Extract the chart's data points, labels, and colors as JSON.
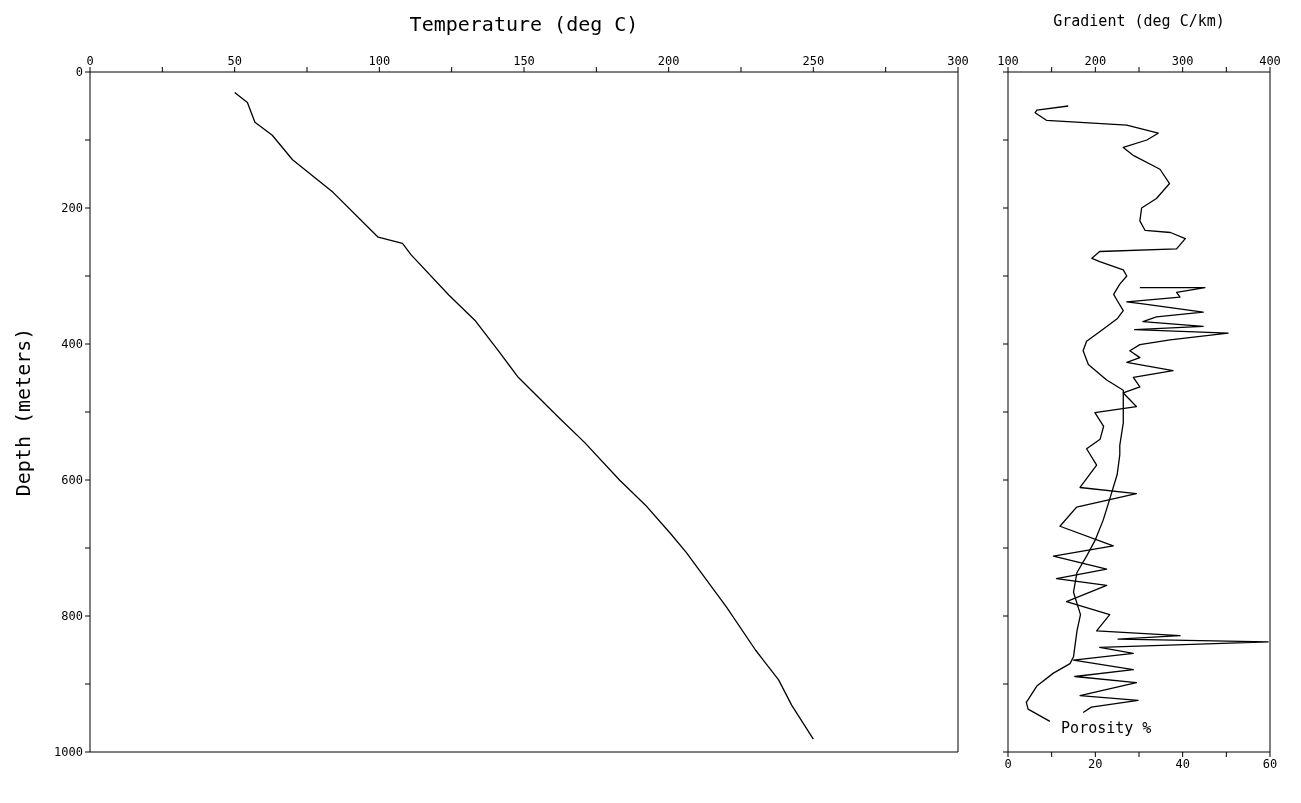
{
  "chart_data": [
    {
      "type": "line",
      "xlabel": "Temperature (deg C)",
      "ylabel": "Depth (meters)",
      "xlim": [
        0,
        300
      ],
      "xticks": [
        0,
        {
          "value": 25,
          "label": null
        },
        50,
        {
          "value": 75,
          "label": null
        },
        100,
        {
          "value": 125,
          "label": null
        },
        150,
        {
          "value": 175,
          "label": null
        },
        200,
        {
          "value": 225,
          "label": null
        },
        250,
        {
          "value": 275,
          "label": null
        },
        300
      ],
      "ylim": [
        1000,
        0
      ],
      "yticks": [
        0,
        {
          "value": 100,
          "label": null
        },
        200,
        {
          "value": 300,
          "label": null
        },
        400,
        {
          "value": 500,
          "label": null
        },
        600,
        {
          "value": 700,
          "label": null
        },
        800,
        {
          "value": 900,
          "label": null
        },
        1000
      ],
      "grid": false,
      "legend": false,
      "series": [
        {
          "color": "#000000",
          "x": [
            50,
            54.4,
            57,
            63,
            70,
            84,
            99.6,
            108,
            111,
            124,
            133,
            141.5,
            148,
            162,
            171,
            183,
            192,
            200.7,
            206,
            220,
            230,
            238,
            242.5,
            250
          ],
          "values": [
            30,
            45,
            74,
            93,
            129,
            177,
            243,
            252,
            269,
            328,
            365,
            412,
            449,
            508,
            545,
            600,
            637,
            679,
            706,
            787,
            850,
            894,
            931,
            981
          ]
        }
      ]
    },
    {
      "type": "line",
      "xlim": [
        0,
        60
      ],
      "xticks": [
        0,
        {
          "value": 10,
          "label": null
        },
        20,
        {
          "value": 30,
          "label": null
        },
        40,
        {
          "value": 50,
          "label": null
        },
        60
      ],
      "x2label": "Gradient (deg C/km)",
      "x2lim": [
        100,
        400
      ],
      "x2ticks": [
        100,
        {
          "value": 150,
          "label": null
        },
        200,
        {
          "value": 250,
          "label": null
        },
        300,
        {
          "value": 350,
          "label": null
        },
        400
      ],
      "ylim": [
        1000,
        0
      ],
      "yticks": [
        {
          "value": 0,
          "label": null
        },
        {
          "value": 100,
          "label": null
        },
        {
          "value": 200,
          "label": null
        },
        {
          "value": 300,
          "label": null
        },
        {
          "value": 400,
          "label": null
        },
        {
          "value": 500,
          "label": null
        },
        {
          "value": 600,
          "label": null
        },
        {
          "value": 700,
          "label": null
        },
        {
          "value": 800,
          "label": null
        },
        {
          "value": 900,
          "label": null
        },
        {
          "value": 1000,
          "label": null
        }
      ],
      "tick_labels": "x",
      "grid": false,
      "legend": false,
      "series": [
        {
          "color": "#000000",
          "axis": "x2",
          "x": [
            169,
            133,
            131,
            144,
            236,
            272,
            259,
            232,
            244,
            274,
            285,
            270,
            253,
            251,
            257,
            286,
            303,
            293,
            205,
            196,
            205,
            232,
            236,
            228,
            221,
            225,
            232,
            225,
            205,
            190,
            186,
            192,
            213,
            232,
            232,
            232,
            228,
            228,
            225,
            217,
            209,
            200,
            190,
            179,
            175,
            183,
            179,
            175,
            171,
            152,
            133,
            121,
            123,
            148
          ],
          "values": [
            50,
            56,
            60,
            71,
            78,
            90,
            100,
            111,
            123,
            143,
            164,
            186,
            200,
            219,
            233,
            236,
            245,
            260,
            264,
            274,
            279,
            291,
            300,
            312,
            327,
            336,
            351,
            363,
            382,
            396,
            410,
            430,
            453,
            468,
            475,
            516,
            549,
            563,
            592,
            626,
            659,
            688,
            712,
            736,
            765,
            798,
            822,
            860,
            870,
            884,
            903,
            927,
            937,
            955
          ]
        },
        {
          "name": "Porosity %",
          "color": "#000000",
          "x": [
            30.2,
            45.1,
            38.6,
            39.4,
            27.2,
            30.9,
            44.7,
            34,
            30.9,
            44.7,
            29,
            50.4,
            37.1,
            30.2,
            27.9,
            30.2,
            27.2,
            37.8,
            28.7,
            30.2,
            26.4,
            29.4,
            19.9,
            21.9,
            21.1,
            18,
            20.3,
            16.5,
            29.4,
            15.7,
            11.9,
            24.1,
            10.4,
            22.6,
            11.1,
            22.6,
            13.4,
            23.3,
            20.3,
            39.4,
            25.2,
            59.6,
            21,
            28.7,
            15,
            28.7,
            15.3,
            29.4,
            16.5,
            29.8,
            19.1,
            17.2
          ],
          "values": [
            317,
            317,
            324,
            331,
            338,
            341,
            353,
            360,
            367,
            374,
            379,
            384,
            394,
            401,
            410,
            420,
            427,
            439,
            449,
            463,
            472,
            492,
            501,
            521,
            540,
            554,
            578,
            611,
            620,
            640,
            668,
            697,
            712,
            731,
            745,
            755,
            779,
            798,
            822,
            829,
            834,
            838,
            846,
            855,
            865,
            879,
            889,
            898,
            917,
            924,
            934,
            942
          ]
        }
      ]
    }
  ]
}
